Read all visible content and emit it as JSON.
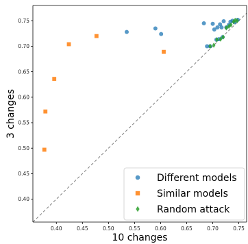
{
  "chart_data": {
    "type": "scatter",
    "xlabel": "10 changes",
    "ylabel": "3 changes",
    "xlim": [
      0.355,
      0.765
    ],
    "ylim": [
      0.355,
      0.78
    ],
    "x_ticks": [
      "0.40",
      "0.45",
      "0.50",
      "0.55",
      "0.60",
      "0.65",
      "0.70",
      "0.75"
    ],
    "y_ticks": [
      "0.40",
      "0.45",
      "0.50",
      "0.55",
      "0.60",
      "0.65",
      "0.70",
      "0.75"
    ],
    "grid": false,
    "legend_position": "bottom-right",
    "reference_line": "y = x (dashed)",
    "series": [
      {
        "name": "Different models",
        "marker": "circle",
        "color": "#1f77b4",
        "points": [
          [
            0.535,
            0.728
          ],
          [
            0.59,
            0.735
          ],
          [
            0.601,
            0.724
          ],
          [
            0.683,
            0.745
          ],
          [
            0.689,
            0.7
          ],
          [
            0.695,
            0.7
          ],
          [
            0.7,
            0.744
          ],
          [
            0.703,
            0.733
          ],
          [
            0.707,
            0.713
          ],
          [
            0.709,
            0.737
          ],
          [
            0.712,
            0.714
          ],
          [
            0.714,
            0.743
          ],
          [
            0.717,
            0.737
          ],
          [
            0.719,
            0.718
          ],
          [
            0.721,
            0.749
          ],
          [
            0.726,
            0.737
          ],
          [
            0.731,
            0.742
          ],
          [
            0.734,
            0.748
          ],
          [
            0.738,
            0.75
          ],
          [
            0.742,
            0.747
          ],
          [
            0.748,
            0.752
          ]
        ]
      },
      {
        "name": "Similar models",
        "marker": "square",
        "color": "#ff7f0e",
        "points": [
          [
            0.377,
            0.497
          ],
          [
            0.379,
            0.572
          ],
          [
            0.396,
            0.636
          ],
          [
            0.424,
            0.704
          ],
          [
            0.477,
            0.72
          ],
          [
            0.606,
            0.689
          ]
        ]
      },
      {
        "name": "Random attack",
        "marker": "diamond",
        "color": "#2ca02c",
        "points": [
          [
            0.695,
            0.7
          ],
          [
            0.702,
            0.702
          ],
          [
            0.708,
            0.713
          ],
          [
            0.715,
            0.714
          ],
          [
            0.72,
            0.718
          ],
          [
            0.726,
            0.736
          ],
          [
            0.731,
            0.739
          ],
          [
            0.735,
            0.742
          ],
          [
            0.74,
            0.748
          ],
          [
            0.743,
            0.751
          ],
          [
            0.747,
            0.75
          ]
        ]
      }
    ]
  }
}
